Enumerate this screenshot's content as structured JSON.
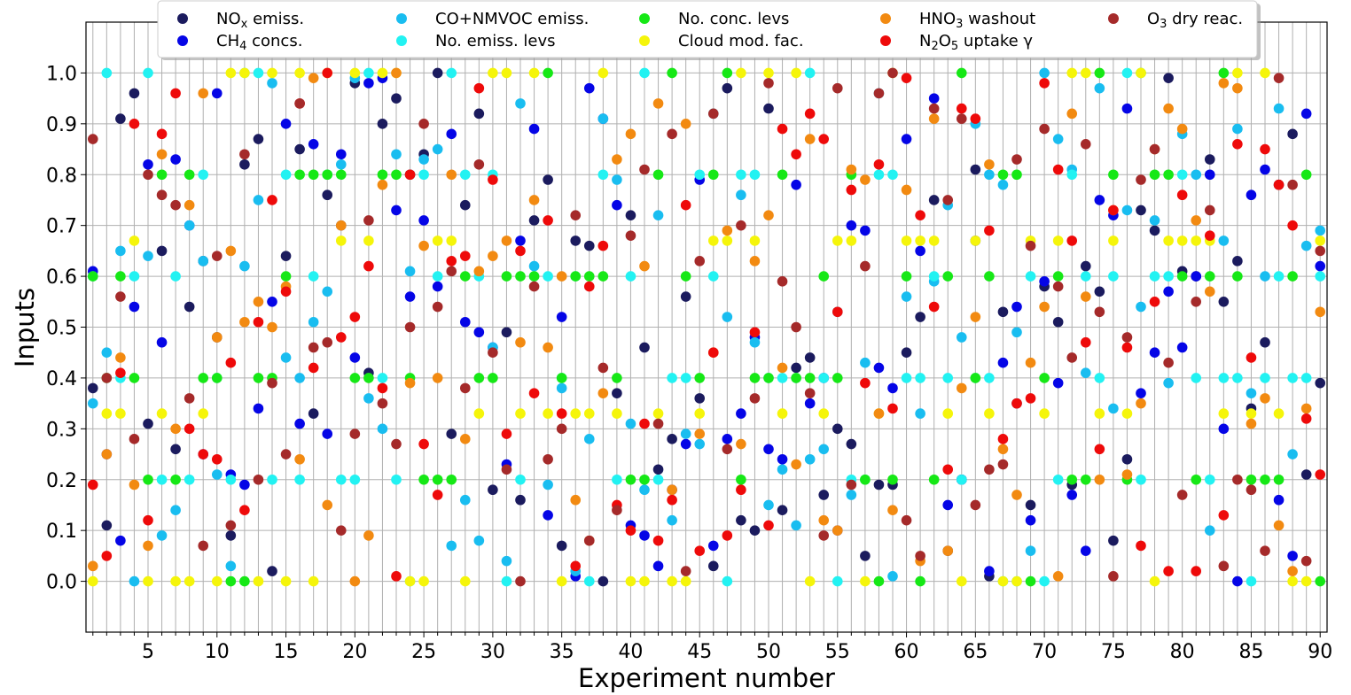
{
  "chart_data": {
    "type": "scatter",
    "xlabel": "Experiment number",
    "ylabel": "Inputs",
    "xlim": [
      0.5,
      90.5
    ],
    "ylim": [
      -0.1,
      1.1
    ],
    "x_ticks": [
      5,
      10,
      15,
      20,
      25,
      30,
      35,
      40,
      45,
      50,
      55,
      60,
      65,
      70,
      75,
      80,
      85,
      90
    ],
    "x_tick_labels": [
      "5",
      "10",
      "15",
      "20",
      "25",
      "30",
      "35",
      "40",
      "45",
      "50",
      "55",
      "60",
      "65",
      "70",
      "75",
      "80",
      "85",
      "90"
    ],
    "y_ticks": [
      0.0,
      0.1,
      0.2,
      0.3,
      0.4,
      0.5,
      0.6,
      0.7,
      0.8,
      0.9,
      1.0
    ],
    "y_tick_labels": [
      "0.0",
      "0.1",
      "0.2",
      "0.3",
      "0.4",
      "0.5",
      "0.6",
      "0.7",
      "0.8",
      "0.9",
      "1.0"
    ],
    "grid": true,
    "legend_position": "top",
    "x": [
      1,
      2,
      3,
      4,
      5,
      6,
      7,
      8,
      9,
      10,
      11,
      12,
      13,
      14,
      15,
      16,
      17,
      18,
      19,
      20,
      21,
      22,
      23,
      24,
      25,
      26,
      27,
      28,
      29,
      30,
      31,
      32,
      33,
      34,
      35,
      36,
      37,
      38,
      39,
      40,
      41,
      42,
      43,
      44,
      45,
      46,
      47,
      48,
      49,
      50,
      51,
      52,
      53,
      54,
      55,
      56,
      57,
      58,
      59,
      60,
      61,
      62,
      63,
      64,
      65,
      66,
      67,
      68,
      69,
      70,
      71,
      72,
      73,
      74,
      75,
      76,
      77,
      78,
      79,
      80,
      81,
      82,
      83,
      84,
      85,
      86,
      87,
      88,
      89,
      90
    ],
    "series": [
      {
        "name": "NO",
        "name_sub": "x",
        "name_tail": " emiss.",
        "color": "#1b1b5e",
        "values": [
          0.38,
          0.11,
          0.91,
          0.96,
          0.31,
          0.65,
          0.26,
          0.54,
          0.63,
          0.48,
          0.09,
          0.82,
          0.87,
          0.02,
          0.64,
          0.85,
          0.33,
          0.76,
          0.7,
          0.98,
          0.41,
          0.9,
          0.95,
          0.8,
          0.84,
          1.0,
          0.29,
          0.74,
          0.92,
          0.18,
          0.49,
          0.16,
          0.71,
          0.79,
          0.07,
          0.67,
          0.66,
          0.0,
          0.37,
          0.72,
          0.46,
          0.22,
          0.28,
          0.56,
          0.36,
          0.03,
          0.97,
          0.12,
          0.1,
          0.93,
          0.14,
          0.42,
          0.44,
          0.17,
          0.3,
          0.27,
          0.05,
          0.19,
          0.19,
          0.45,
          0.52,
          0.75,
          0.06,
          0.2,
          0.81,
          0.01,
          0.53,
          0.35,
          0.15,
          0.58,
          0.51,
          0.19,
          0.62,
          0.57,
          0.08,
          0.24,
          0.73,
          0.69,
          0.99,
          0.61,
          0.6,
          0.83,
          0.55,
          0.63,
          0.34,
          0.47,
          0.78,
          0.88,
          0.21,
          0.39
        ]
      },
      {
        "name": "CH",
        "name_sub": "4",
        "name_tail": " concs.",
        "color": "#0505e6",
        "values": [
          0.61,
          0.25,
          0.08,
          0.54,
          0.82,
          0.47,
          0.83,
          0.7,
          0.25,
          0.96,
          0.21,
          0.19,
          0.34,
          0.55,
          0.9,
          0.31,
          0.86,
          0.29,
          0.84,
          0.44,
          0.98,
          0.99,
          0.73,
          0.56,
          0.71,
          0.58,
          0.88,
          0.51,
          0.49,
          0.46,
          0.23,
          0.67,
          0.89,
          0.13,
          0.52,
          0.01,
          0.97,
          0.91,
          0.74,
          0.11,
          0.09,
          0.03,
          0.18,
          0.27,
          0.79,
          0.07,
          0.28,
          0.33,
          0.48,
          0.26,
          0.24,
          0.78,
          0.35,
          0.4,
          0.1,
          0.7,
          0.69,
          0.42,
          0.38,
          0.87,
          0.65,
          0.95,
          0.15,
          0.2,
          0.67,
          0.02,
          0.43,
          0.54,
          0.12,
          0.59,
          0.39,
          0.17,
          0.06,
          0.75,
          0.72,
          0.93,
          0.37,
          0.45,
          0.57,
          0.46,
          0.6,
          0.8,
          0.3,
          0.0,
          0.76,
          0.81,
          0.16,
          0.05,
          0.92,
          0.62
        ]
      },
      {
        "name": "CO+NMVOC emiss.",
        "color": "#19bdf0",
        "values": [
          0.35,
          0.45,
          0.65,
          0.0,
          0.64,
          0.09,
          0.14,
          0.7,
          0.63,
          0.21,
          0.03,
          0.62,
          0.75,
          0.98,
          0.44,
          0.4,
          0.51,
          0.57,
          0.82,
          0.99,
          0.36,
          0.3,
          0.84,
          0.61,
          0.83,
          0.85,
          0.07,
          0.16,
          0.08,
          0.46,
          0.04,
          0.94,
          0.62,
          0.19,
          0.38,
          0.02,
          0.28,
          0.91,
          0.79,
          0.31,
          0.18,
          0.72,
          0.12,
          0.29,
          0.27,
          0.92,
          0.52,
          0.76,
          0.47,
          0.15,
          0.22,
          0.11,
          0.24,
          0.26,
          0.53,
          0.17,
          0.43,
          0.96,
          0.01,
          0.56,
          0.33,
          0.59,
          0.74,
          0.48,
          0.9,
          0.8,
          0.78,
          0.49,
          0.06,
          1.0,
          0.87,
          0.81,
          0.41,
          0.97,
          0.34,
          0.73,
          0.54,
          0.71,
          0.39,
          0.88,
          0.8,
          0.1,
          0.67,
          0.89,
          0.37,
          0.6,
          0.93,
          0.25,
          0.66,
          0.69
        ]
      },
      {
        "name": "No. emiss. levs",
        "color": "#22f2f2",
        "values": [
          0.6,
          1.0,
          0.4,
          0.6,
          1.0,
          0.2,
          0.6,
          0.2,
          0.8,
          0.4,
          0.2,
          1.0,
          1.0,
          0.2,
          0.8,
          0.2,
          0.6,
          0.8,
          0.2,
          0.2,
          1.0,
          0.4,
          0.2,
          0.0,
          0.8,
          0.6,
          1.0,
          0.8,
          0.6,
          0.8,
          0.0,
          0.2,
          0.6,
          0.6,
          0.4,
          0.6,
          0.0,
          0.8,
          0.2,
          0.6,
          1.0,
          0.2,
          0.4,
          0.4,
          0.8,
          0.6,
          0.0,
          0.8,
          0.8,
          0.4,
          0.4,
          0.4,
          1.0,
          0.4,
          0.0,
          0.2,
          0.2,
          0.8,
          0.8,
          0.4,
          0.4,
          0.6,
          0.4,
          0.2,
          0.4,
          0.4,
          0.0,
          0.0,
          0.6,
          0.0,
          0.2,
          0.8,
          0.6,
          0.4,
          0.6,
          1.0,
          0.2,
          0.6,
          0.6,
          0.8,
          0.4,
          0.2,
          0.4,
          0.4,
          0.0,
          0.4,
          0.6,
          0.4,
          0.4,
          0.6
        ]
      },
      {
        "name": "No. conc. levs",
        "color": "#16e816",
        "values": [
          0.6,
          0.4,
          0.6,
          0.4,
          0.2,
          0.8,
          0.2,
          0.8,
          0.4,
          0.4,
          0.0,
          0.0,
          0.4,
          0.4,
          0.6,
          0.8,
          0.8,
          0.8,
          0.8,
          0.4,
          0.4,
          0.8,
          0.8,
          0.4,
          0.2,
          0.2,
          0.2,
          0.6,
          0.4,
          0.4,
          0.6,
          0.6,
          0.6,
          1.0,
          0.4,
          0.6,
          0.6,
          0.6,
          0.4,
          0.2,
          0.2,
          0.8,
          1.0,
          0.6,
          0.4,
          0.8,
          1.0,
          0.2,
          0.4,
          0.4,
          0.8,
          0.4,
          0.4,
          0.6,
          0.4,
          0.8,
          0.2,
          0.0,
          0.2,
          0.6,
          0.0,
          0.2,
          0.6,
          1.0,
          0.4,
          0.6,
          0.8,
          0.8,
          0.0,
          0.4,
          0.6,
          0.2,
          0.2,
          1.0,
          0.8,
          0.2,
          1.0,
          0.8,
          0.8,
          0.6,
          0.2,
          0.6,
          1.0,
          0.6,
          0.2,
          0.2,
          0.2,
          0.6,
          0.8,
          0.0
        ]
      },
      {
        "name": "Cloud mod. fac.",
        "color": "#f5f50a",
        "values": [
          0.0,
          0.33,
          0.33,
          0.67,
          0.0,
          0.33,
          0.0,
          0.0,
          0.33,
          0.0,
          1.0,
          1.0,
          0.0,
          1.0,
          0.0,
          1.0,
          0.0,
          1.0,
          0.67,
          1.0,
          0.67,
          1.0,
          1.0,
          0.0,
          0.0,
          0.67,
          0.67,
          0.0,
          0.33,
          1.0,
          1.0,
          0.33,
          1.0,
          0.33,
          0.0,
          0.33,
          0.33,
          1.0,
          0.33,
          0.0,
          0.0,
          0.33,
          0.0,
          0.0,
          0.33,
          0.67,
          0.67,
          1.0,
          0.67,
          1.0,
          0.33,
          1.0,
          0.0,
          0.33,
          0.67,
          0.67,
          0.0,
          0.33,
          1.0,
          0.67,
          0.67,
          0.67,
          0.33,
          0.0,
          0.67,
          0.33,
          0.0,
          0.0,
          0.67,
          0.33,
          0.67,
          1.0,
          1.0,
          0.33,
          0.67,
          0.33,
          1.0,
          0.0,
          0.67,
          0.67,
          0.67,
          0.67,
          0.33,
          1.0,
          0.33,
          1.0,
          0.33,
          0.0,
          0.0,
          0.67
        ]
      },
      {
        "name": "HNO",
        "name_sub": "3",
        "name_tail": " washout",
        "color": "#f28a11",
        "values": [
          0.03,
          0.25,
          0.44,
          0.19,
          0.07,
          0.84,
          0.3,
          0.74,
          0.96,
          0.48,
          0.65,
          0.51,
          0.55,
          0.5,
          0.58,
          0.24,
          0.99,
          0.15,
          0.7,
          0.0,
          0.09,
          0.78,
          1.0,
          0.39,
          0.66,
          0.4,
          0.8,
          0.28,
          0.61,
          0.64,
          0.67,
          0.47,
          0.75,
          0.46,
          0.6,
          0.16,
          0.08,
          0.37,
          0.83,
          0.88,
          0.62,
          0.94,
          0.18,
          0.9,
          0.29,
          0.45,
          0.69,
          0.27,
          0.63,
          0.72,
          0.42,
          0.23,
          0.87,
          0.12,
          0.1,
          0.81,
          0.79,
          0.33,
          0.14,
          0.77,
          0.04,
          0.91,
          0.06,
          0.38,
          0.52,
          0.82,
          0.26,
          0.17,
          0.43,
          0.54,
          0.01,
          0.92,
          0.56,
          0.2,
          0.73,
          0.21,
          0.35,
          0.85,
          0.93,
          0.89,
          0.71,
          0.57,
          0.98,
          0.97,
          0.31,
          0.36,
          0.11,
          0.02,
          0.34,
          0.53
        ]
      },
      {
        "name": "N",
        "name_sub": "2",
        "name_mid": "O",
        "name_sub2": "5",
        "name_tail": " uptake γ",
        "color": "#ee0a0a",
        "values": [
          0.19,
          0.05,
          0.41,
          0.9,
          0.12,
          0.88,
          0.96,
          0.3,
          0.25,
          0.24,
          0.43,
          0.14,
          0.51,
          0.75,
          0.57,
          0.94,
          0.42,
          1.0,
          0.48,
          0.52,
          0.62,
          0.38,
          0.01,
          0.8,
          0.27,
          0.17,
          0.63,
          0.64,
          0.97,
          0.79,
          0.29,
          0.65,
          0.37,
          0.71,
          0.33,
          0.03,
          0.58,
          0.66,
          0.15,
          0.1,
          0.31,
          0.08,
          0.16,
          0.74,
          0.06,
          0.45,
          0.09,
          0.18,
          0.49,
          0.11,
          0.89,
          0.84,
          0.92,
          0.87,
          0.53,
          0.77,
          0.39,
          0.82,
          0.34,
          0.99,
          0.72,
          0.54,
          0.22,
          0.93,
          0.91,
          0.69,
          0.28,
          0.35,
          0.36,
          0.98,
          0.81,
          0.67,
          0.47,
          0.26,
          0.73,
          0.46,
          0.07,
          0.55,
          0.02,
          0.76,
          0.02,
          0.68,
          0.13,
          0.86,
          0.44,
          0.85,
          0.78,
          0.7,
          0.32,
          0.21
        ]
      },
      {
        "name": "O",
        "name_sub": "3",
        "name_tail": " dry reac.",
        "color": "#a52a2a",
        "values": [
          0.87,
          0.4,
          0.56,
          0.28,
          0.8,
          0.76,
          0.74,
          0.36,
          0.07,
          0.64,
          0.11,
          0.84,
          0.2,
          0.39,
          0.25,
          0.94,
          0.46,
          0.47,
          0.1,
          0.29,
          0.71,
          0.35,
          0.27,
          0.5,
          0.9,
          0.54,
          0.61,
          0.38,
          0.82,
          0.45,
          0.22,
          0.0,
          0.58,
          0.24,
          0.3,
          0.72,
          0.08,
          0.42,
          0.14,
          0.68,
          0.81,
          0.31,
          0.88,
          0.02,
          0.63,
          0.92,
          0.26,
          0.7,
          0.36,
          0.98,
          0.59,
          0.5,
          0.37,
          0.09,
          0.97,
          0.19,
          0.62,
          0.96,
          1.0,
          0.12,
          0.05,
          0.93,
          0.75,
          0.91,
          0.15,
          0.22,
          0.23,
          0.83,
          0.66,
          0.89,
          0.58,
          0.44,
          0.86,
          0.53,
          0.01,
          0.48,
          0.79,
          0.85,
          0.43,
          0.17,
          0.55,
          0.73,
          0.03,
          0.2,
          0.18,
          0.06,
          0.99,
          0.78,
          0.04,
          0.65
        ]
      }
    ]
  }
}
